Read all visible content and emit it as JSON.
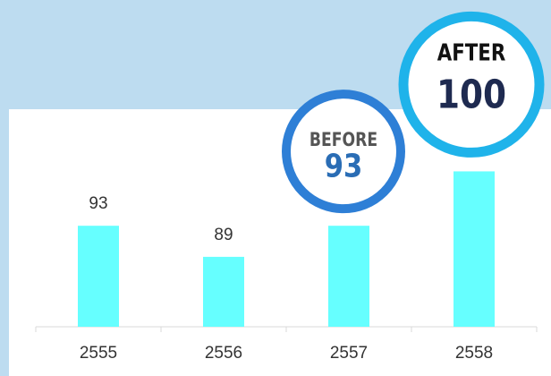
{
  "chart_data": {
    "type": "bar",
    "categories": [
      "2555",
      "2556",
      "2557",
      "2558"
    ],
    "values": [
      93,
      89,
      93,
      100
    ],
    "color": "#66ffff",
    "ylim": [
      80,
      108
    ],
    "annotations": [
      {
        "category": "2557",
        "label": "BEFORE",
        "value": 93,
        "color": "#2e7fd6"
      },
      {
        "category": "2558",
        "label": "AFTER",
        "value": 100,
        "color": "#1fb3ea"
      }
    ]
  }
}
